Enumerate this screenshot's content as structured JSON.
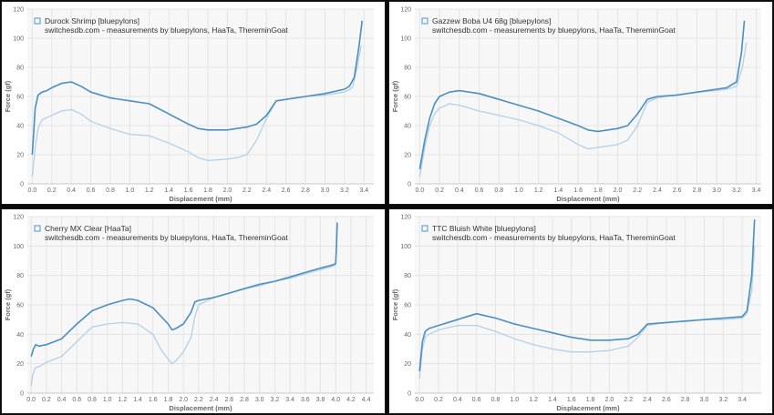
{
  "colors": {
    "downstroke": "#4a8fc1",
    "upstroke": "#b3d0e8",
    "legend_box": "#62a7d8"
  },
  "chart_data": [
    {
      "type": "line",
      "legend": "Durock Shrimp [bluepylons]",
      "subtitle": "switchesdb.com - measurements by bluepylons, HaaTa, ThereminGoat",
      "xlabel": "Displacement (mm)",
      "ylabel": "Force (gf)",
      "xlim": [
        -0.05,
        3.5
      ],
      "ylim": [
        0,
        120
      ],
      "xticks": [
        "0.0",
        "0.2",
        "0.4",
        "0.6",
        "0.8",
        "1.0",
        "1.2",
        "1.4",
        "1.6",
        "1.8",
        "2.0",
        "2.2",
        "2.4",
        "2.6",
        "2.8",
        "3.0",
        "3.2",
        "3.4"
      ],
      "yticks": [
        "0",
        "20",
        "40",
        "60",
        "80",
        "100",
        "120"
      ],
      "series": [
        {
          "role": "downstroke",
          "x": [
            0,
            0.03,
            0.06,
            0.1,
            0.15,
            0.2,
            0.3,
            0.4,
            0.5,
            0.6,
            0.8,
            1.0,
            1.2,
            1.4,
            1.6,
            1.7,
            1.8,
            2.0,
            2.2,
            2.3,
            2.4,
            2.5,
            2.8,
            3.0,
            3.2,
            3.25,
            3.3,
            3.35,
            3.38
          ],
          "y": [
            20,
            52,
            61,
            63,
            64,
            66,
            69,
            70,
            67,
            63,
            59,
            57,
            55,
            48,
            41,
            38,
            37,
            37,
            39,
            41,
            47,
            57,
            60,
            62,
            65,
            67,
            73,
            95,
            112
          ]
        },
        {
          "role": "upstroke",
          "x": [
            0,
            0.03,
            0.06,
            0.1,
            0.2,
            0.3,
            0.4,
            0.5,
            0.6,
            0.8,
            1.0,
            1.2,
            1.4,
            1.6,
            1.7,
            1.8,
            2.0,
            2.1,
            2.2,
            2.3,
            2.4,
            2.5,
            2.8,
            3.0,
            3.2,
            3.28,
            3.33,
            3.37
          ],
          "y": [
            5,
            25,
            38,
            44,
            47,
            50,
            51,
            48,
            43,
            38,
            34,
            33,
            28,
            22,
            18,
            16,
            17,
            18,
            20,
            30,
            45,
            57,
            60,
            61,
            63,
            66,
            80,
            95
          ]
        }
      ]
    },
    {
      "type": "line",
      "legend": "Gazzew Boba U4 68g [bluepylons]",
      "subtitle": "switchesdb.com - measurements by bluepylons, HaaTa, ThereminGoat",
      "xlabel": "Displacement (mm)",
      "ylabel": "Force (gf)",
      "xlim": [
        -0.05,
        3.45
      ],
      "ylim": [
        0,
        120
      ],
      "xticks": [
        "0.0",
        "0.2",
        "0.4",
        "0.6",
        "0.8",
        "1.0",
        "1.2",
        "1.4",
        "1.6",
        "1.8",
        "2.0",
        "2.2",
        "2.4",
        "2.6",
        "2.8",
        "3.0",
        "3.2",
        "3.4"
      ],
      "yticks": [
        "0",
        "20",
        "40",
        "60",
        "80",
        "100",
        "120"
      ],
      "series": [
        {
          "role": "downstroke",
          "x": [
            0,
            0.05,
            0.1,
            0.15,
            0.2,
            0.3,
            0.4,
            0.6,
            0.8,
            1.0,
            1.2,
            1.4,
            1.6,
            1.7,
            1.8,
            2.0,
            2.1,
            2.2,
            2.3,
            2.4,
            2.6,
            2.8,
            3.0,
            3.1,
            3.2,
            3.25,
            3.28
          ],
          "y": [
            10,
            30,
            45,
            55,
            60,
            63,
            64,
            62,
            58,
            54,
            50,
            45,
            40,
            37,
            36,
            38,
            40,
            48,
            58,
            60,
            61,
            63,
            65,
            66,
            70,
            90,
            112
          ]
        },
        {
          "role": "upstroke",
          "x": [
            0,
            0.05,
            0.1,
            0.15,
            0.2,
            0.3,
            0.4,
            0.6,
            0.8,
            1.0,
            1.2,
            1.4,
            1.6,
            1.7,
            1.8,
            2.0,
            2.1,
            2.2,
            2.3,
            2.4,
            2.6,
            2.8,
            3.0,
            3.1,
            3.2,
            3.26,
            3.3
          ],
          "y": [
            5,
            25,
            40,
            48,
            52,
            55,
            54,
            50,
            47,
            44,
            40,
            35,
            27,
            24,
            25,
            27,
            30,
            40,
            56,
            59,
            61,
            63,
            64,
            65,
            67,
            80,
            97
          ]
        }
      ]
    },
    {
      "type": "line",
      "legend": "Cherry MX Clear [HaaTa]",
      "subtitle": "switchesdb.com - measurements by bluepylons, HaaTa, ThereminGoat",
      "xlabel": "Displacement (mm)",
      "ylabel": "Force (gf)",
      "xlim": [
        -0.05,
        4.5
      ],
      "ylim": [
        0,
        120
      ],
      "xticks": [
        "0.0",
        "0.2",
        "0.4",
        "0.6",
        "0.8",
        "1.0",
        "1.2",
        "1.4",
        "1.6",
        "1.8",
        "2.0",
        "2.2",
        "2.4",
        "2.6",
        "2.8",
        "3.0",
        "3.2",
        "3.4",
        "3.6",
        "3.8",
        "4.0",
        "4.2",
        "4.4"
      ],
      "yticks": [
        "0",
        "20",
        "40",
        "60",
        "80",
        "100",
        "120"
      ],
      "series": [
        {
          "role": "downstroke",
          "x": [
            0,
            0.03,
            0.06,
            0.1,
            0.2,
            0.4,
            0.6,
            0.8,
            1.0,
            1.2,
            1.3,
            1.4,
            1.6,
            1.8,
            1.85,
            1.9,
            2.0,
            2.1,
            2.15,
            2.2,
            2.4,
            2.6,
            2.8,
            3.0,
            3.2,
            3.4,
            3.6,
            3.8,
            3.95,
            4.0,
            4.01,
            4.02
          ],
          "y": [
            25,
            30,
            33,
            32,
            33,
            37,
            47,
            56,
            60,
            63,
            64,
            63,
            58,
            47,
            43,
            44,
            47,
            55,
            62,
            63,
            65,
            68,
            71,
            74,
            76,
            79,
            82,
            85,
            87,
            88,
            100,
            116
          ]
        },
        {
          "role": "upstroke",
          "x": [
            0,
            0.02,
            0.05,
            0.1,
            0.2,
            0.4,
            0.6,
            0.8,
            1.0,
            1.2,
            1.4,
            1.6,
            1.7,
            1.8,
            1.85,
            1.9,
            2.0,
            2.1,
            2.15,
            2.2,
            2.4,
            2.6,
            2.8,
            3.0,
            3.2,
            3.4,
            3.6,
            3.8,
            3.95,
            4.0
          ],
          "y": [
            5,
            12,
            17,
            18,
            21,
            25,
            35,
            45,
            47,
            48,
            47,
            40,
            30,
            23,
            20,
            22,
            28,
            38,
            52,
            60,
            65,
            68,
            71,
            73,
            76,
            78,
            81,
            84,
            86,
            87
          ]
        }
      ]
    },
    {
      "type": "line",
      "legend": "TTC Bluish White [bluepylons]",
      "subtitle": "switchesdb.com - measurements by bluepylons, HaaTa, ThereminGoat",
      "xlabel": "Displacement (mm)",
      "ylabel": "Force (gf)",
      "xlim": [
        -0.05,
        3.6
      ],
      "ylim": [
        0,
        120
      ],
      "xticks": [
        "0.0",
        "0.2",
        "0.4",
        "0.6",
        "0.8",
        "1.0",
        "1.2",
        "1.4",
        "1.6",
        "1.8",
        "2.0",
        "2.2",
        "2.4",
        "2.6",
        "2.8",
        "3.0",
        "3.2",
        "3.4"
      ],
      "yticks": [
        "0",
        "20",
        "40",
        "60",
        "80",
        "100",
        "120"
      ],
      "series": [
        {
          "role": "downstroke",
          "x": [
            0,
            0.03,
            0.06,
            0.1,
            0.2,
            0.4,
            0.6,
            0.8,
            1.0,
            1.2,
            1.4,
            1.6,
            1.8,
            2.0,
            2.2,
            2.3,
            2.4,
            2.6,
            2.8,
            3.0,
            3.2,
            3.4,
            3.45,
            3.5,
            3.53
          ],
          "y": [
            15,
            35,
            42,
            44,
            46,
            50,
            54,
            51,
            47,
            44,
            41,
            38,
            36,
            36,
            37,
            40,
            47,
            48,
            49,
            50,
            51,
            52,
            56,
            80,
            118
          ]
        },
        {
          "role": "upstroke",
          "x": [
            0,
            0.03,
            0.06,
            0.1,
            0.2,
            0.4,
            0.6,
            0.8,
            1.0,
            1.2,
            1.4,
            1.6,
            1.8,
            2.0,
            2.2,
            2.3,
            2.4,
            2.6,
            2.8,
            3.0,
            3.2,
            3.4,
            3.45,
            3.5,
            3.53
          ],
          "y": [
            10,
            30,
            38,
            40,
            43,
            46,
            46,
            42,
            37,
            33,
            30,
            28,
            28,
            29,
            32,
            38,
            46,
            48,
            49,
            50,
            50,
            51,
            54,
            70,
            100
          ]
        }
      ]
    }
  ]
}
